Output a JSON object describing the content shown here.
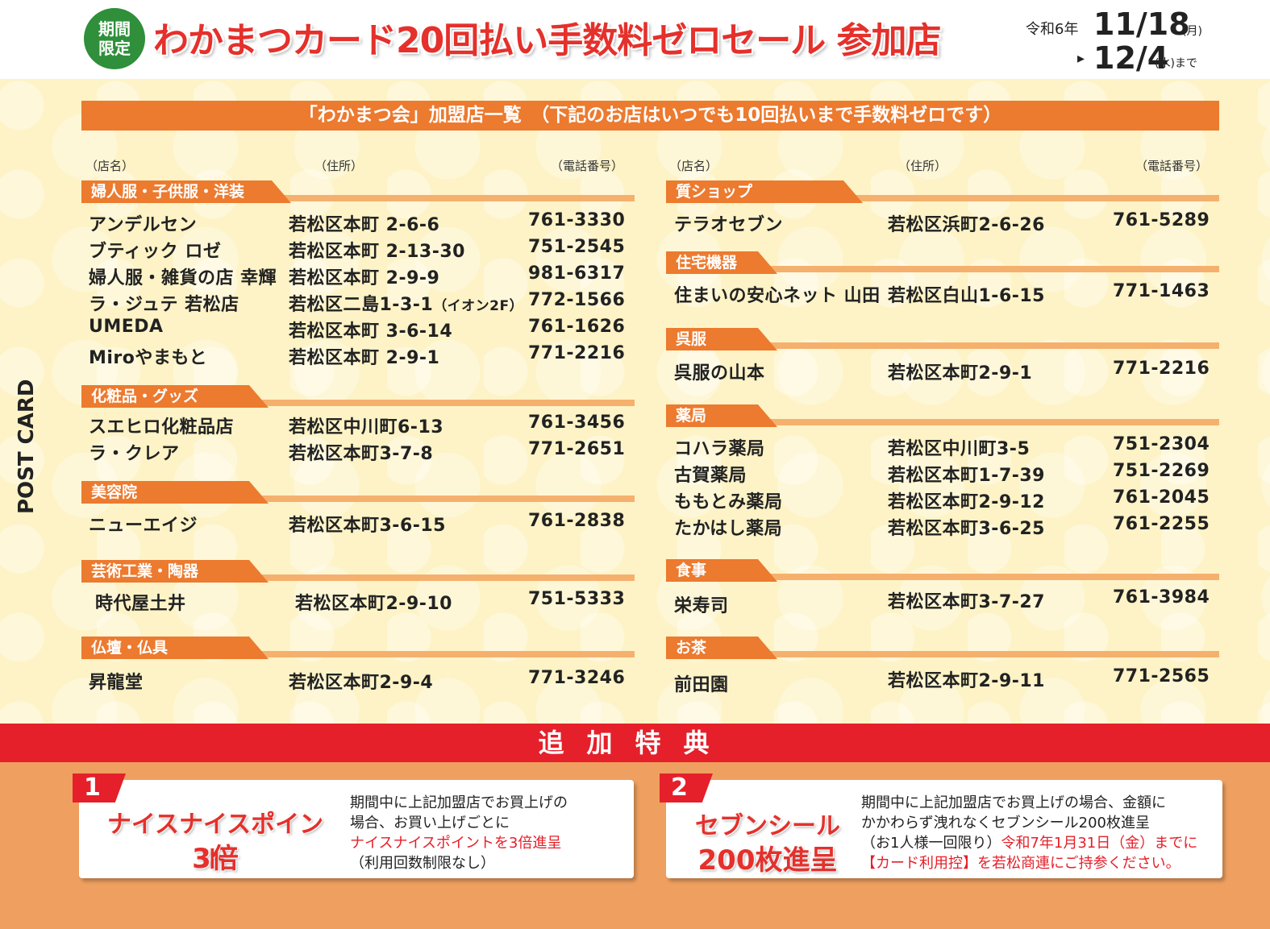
{
  "header": {
    "badge_line1": "期間",
    "badge_line2": "限定",
    "title": "わかまつカード20回払い手数料ゼロセール 参加店",
    "era": "令和6年",
    "start_date": "11/18",
    "start_weekday": "(月)",
    "arrow": "▸",
    "end_date": "12/4",
    "end_weekday": "(水)まで"
  },
  "banner": "「わかまつ会」加盟店一覧　（下記のお店はいつでも10回払いまで手数料ゼロです）",
  "postcard": "POST CARD",
  "col_headers": {
    "name": "（店名）",
    "address": "（住所）",
    "phone": "（電話番号）"
  },
  "left": [
    {
      "category": "婦人服・子供服・洋装",
      "shops": [
        {
          "name": "アンデルセン",
          "address": "若松区本町 2-6-6",
          "phone": "761-3330"
        },
        {
          "name": "ブティック ロゼ",
          "address": "若松区本町 2-13-30",
          "phone": "751-2545"
        },
        {
          "name": "婦人服・雑貨の店 幸輝",
          "address": "若松区本町 2-9-9",
          "phone": "981-6317"
        },
        {
          "name": "ラ・ジュテ 若松店",
          "address": "若松区二島1-3-1",
          "address_note": "（イオン2F）",
          "phone": "772-1566"
        },
        {
          "name": "UMEDA",
          "address": "若松区本町 3-6-14",
          "phone": "761-1626"
        },
        {
          "name": "Miroやまもと",
          "address": "若松区本町 2-9-1",
          "phone": "771-2216"
        }
      ]
    },
    {
      "category": "化粧品・グッズ",
      "shops": [
        {
          "name": "スエヒロ化粧品店",
          "address": "若松区中川町6-13",
          "phone": "761-3456"
        },
        {
          "name": "ラ・クレア",
          "address": "若松区本町3-7-8",
          "phone": "771-2651"
        }
      ]
    },
    {
      "category": "美容院",
      "shops": [
        {
          "name": "ニューエイジ",
          "address": "若松区本町3-6-15",
          "phone": "761-2838"
        }
      ]
    },
    {
      "category": "芸術工業・陶器",
      "shops": [
        {
          "name": "時代屋土井",
          "address": "若松区本町2-9-10",
          "phone": "751-5333"
        }
      ]
    },
    {
      "category": "仏壇・仏具",
      "shops": [
        {
          "name": "昇龍堂",
          "address": "若松区本町2-9-4",
          "phone": "771-3246"
        }
      ]
    }
  ],
  "right": [
    {
      "category": "質ショップ",
      "shops": [
        {
          "name": "テラオセブン",
          "address": "若松区浜町2-6-26",
          "phone": "761-5289"
        }
      ]
    },
    {
      "category": "住宅機器",
      "shops": [
        {
          "name": "住まいの安心ネット 山田",
          "address": "若松区白山1-6-15",
          "phone": "771-1463"
        }
      ]
    },
    {
      "category": "呉服",
      "shops": [
        {
          "name": "呉服の山本",
          "address": "若松区本町2-9-1",
          "phone": "771-2216"
        }
      ]
    },
    {
      "category": "薬局",
      "shops": [
        {
          "name": "コハラ薬局",
          "address": "若松区中川町3-5",
          "phone": "751-2304"
        },
        {
          "name": "古賀薬局",
          "address": "若松区本町1-7-39",
          "phone": "751-2269"
        },
        {
          "name": "ももとみ薬局",
          "address": "若松区本町2-9-12",
          "phone": "761-2045"
        },
        {
          "name": "たかはし薬局",
          "address": "若松区本町3-6-25",
          "phone": "761-2255"
        }
      ]
    },
    {
      "category": "食事",
      "shops": [
        {
          "name": "栄寿司",
          "address": "若松区本町3-7-27",
          "phone": "761-3984"
        }
      ]
    },
    {
      "category": "お茶",
      "shops": [
        {
          "name": "前田園",
          "address": "若松区本町2-9-11",
          "phone": "771-2565"
        }
      ]
    }
  ],
  "extra": {
    "title": "追加特典",
    "bonus1": {
      "num": "1",
      "big1": "ナイスナイスポイント",
      "big2": "3倍",
      "line1": "期間中に上記加盟店でお買上げの",
      "line2": "場合、お買い上げごとに",
      "line3": "ナイスナイスポイントを3倍進呈",
      "line4": "（利用回数制限なし）"
    },
    "bonus2": {
      "num": "2",
      "big1": "セブンシール",
      "big2": "200枚進呈",
      "line1": "期間中に上記加盟店でお買上げの場合、金額に",
      "line2": "かかわらず洩れなくセブンシール200枚進呈",
      "line3a": "（お1人様一回限り）",
      "line3b": "令和7年1月31日（金）までに",
      "line4a": "【カード利用控】",
      "line4b": "を若松商連にご持参ください。"
    }
  },
  "colors": {
    "accent_orange": "#ec7a2f",
    "accent_red": "#e5202a",
    "badge_green": "#2f8f3a"
  }
}
